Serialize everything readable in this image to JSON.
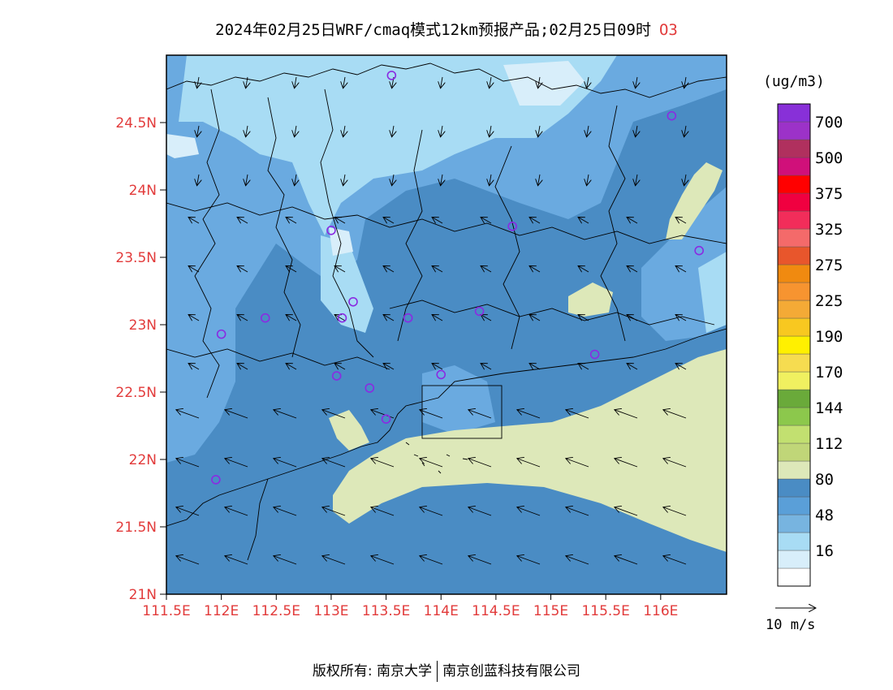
{
  "title": "2024年02月25日WRF/cmaq模式12km预报产品;02月25日09时",
  "pollutant": "O3",
  "colorbar": {
    "unit": "(ug/m3)",
    "levels": [
      {
        "label": "",
        "color": "#ffffff"
      },
      {
        "label": "16",
        "color": "#d8eefa"
      },
      {
        "label": "",
        "color": "#a8dcf4"
      },
      {
        "label": "48",
        "color": "#77b4e0"
      },
      {
        "label": "",
        "color": "#5a9fd8"
      },
      {
        "label": "80",
        "color": "#4a8cc4"
      },
      {
        "label": "",
        "color": "#dde8b9"
      },
      {
        "label": "112",
        "color": "#c0d678"
      },
      {
        "label": "",
        "color": "#c2e070"
      },
      {
        "label": "144",
        "color": "#8cc84c"
      },
      {
        "label": "",
        "color": "#6aaa3a"
      },
      {
        "label": "170",
        "color": "#f0f060"
      },
      {
        "label": "",
        "color": "#f6dc50"
      },
      {
        "label": "190",
        "color": "#fff000"
      },
      {
        "label": "",
        "color": "#f8c820"
      },
      {
        "label": "225",
        "color": "#f4aa36"
      },
      {
        "label": "",
        "color": "#f79430"
      },
      {
        "label": "275",
        "color": "#f08a10"
      },
      {
        "label": "",
        "color": "#e8562c"
      },
      {
        "label": "325",
        "color": "#f46a6a"
      },
      {
        "label": "",
        "color": "#f22d5a"
      },
      {
        "label": "375",
        "color": "#f00040"
      },
      {
        "label": "",
        "color": "#ff0000"
      },
      {
        "label": "500",
        "color": "#d0107a"
      },
      {
        "label": "",
        "color": "#b0305e"
      },
      {
        "label": "700",
        "color": "#9c32c8"
      },
      {
        "label": "",
        "color": "#8830d8"
      }
    ]
  },
  "axes": {
    "lat_labels": [
      "24.5N",
      "24N",
      "23.5N",
      "23N",
      "22.5N",
      "22N",
      "21.5N",
      "21N"
    ],
    "lat_values": [
      24.5,
      24,
      23.5,
      23,
      22.5,
      22,
      21.5,
      21
    ],
    "lon_labels": [
      "111.5E",
      "112E",
      "112.5E",
      "113E",
      "113.5E",
      "114E",
      "114.5E",
      "115E",
      "115.5E",
      "116E"
    ],
    "lon_values": [
      111.5,
      112,
      112.5,
      113,
      113.5,
      114,
      114.5,
      115,
      115.5,
      116
    ],
    "lon_range": [
      111.5,
      116.6
    ],
    "lat_range": [
      21,
      25
    ]
  },
  "wind_reference": {
    "label": "10 m/s"
  },
  "stations": [
    [
      113.55,
      24.85
    ],
    [
      116.1,
      24.55
    ],
    [
      113.0,
      23.7
    ],
    [
      114.65,
      23.73
    ],
    [
      116.35,
      23.55
    ],
    [
      113.2,
      23.17
    ],
    [
      112.4,
      23.05
    ],
    [
      113.1,
      23.05
    ],
    [
      113.7,
      23.05
    ],
    [
      114.35,
      23.1
    ],
    [
      112.0,
      22.93
    ],
    [
      115.4,
      22.78
    ],
    [
      113.05,
      22.62
    ],
    [
      114.0,
      22.63
    ],
    [
      113.35,
      22.53
    ],
    [
      113.5,
      22.3
    ],
    [
      111.95,
      21.85
    ]
  ],
  "footer": {
    "left": "版权所有: 南京大学",
    "right": "南京创蓝科技有限公司"
  }
}
